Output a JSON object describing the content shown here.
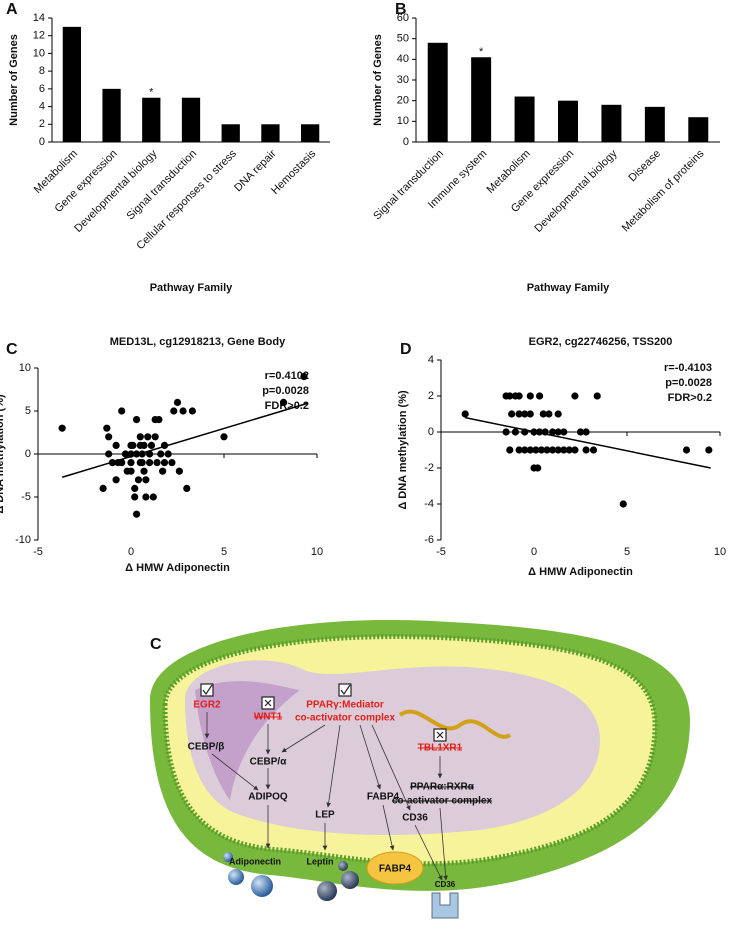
{
  "chart_data": [
    {
      "type": "bar",
      "panel": "A",
      "ylabel": "Number of Genes",
      "xlabel": "Pathway Family",
      "categories": [
        "Metabolism",
        "Gene expression",
        "Developmental biology",
        "Signal transduction",
        "Cellular responses to stress",
        "DNA repair",
        "Hemostasis"
      ],
      "values": [
        13,
        6,
        5,
        5,
        2,
        2,
        2
      ],
      "annotations": [
        null,
        null,
        "*",
        null,
        null,
        null,
        null
      ],
      "color": "#000000",
      "ylim": [
        0,
        14
      ],
      "yticks": [
        0,
        2,
        4,
        6,
        8,
        10,
        12,
        14
      ]
    },
    {
      "type": "bar",
      "panel": "B",
      "ylabel": "Number of Genes",
      "xlabel": "Pathway Family",
      "categories": [
        "Signal transduction",
        "Immune system",
        "Metabolism",
        "Gene expression",
        "Developmental biology",
        "Disease",
        "Metabolism of proteins"
      ],
      "values": [
        48,
        41,
        22,
        20,
        18,
        17,
        12
      ],
      "annotations": [
        null,
        "*",
        null,
        null,
        null,
        null,
        null
      ],
      "color": "#000000",
      "ylim": [
        0,
        60
      ],
      "yticks": [
        0,
        10,
        20,
        30,
        40,
        50,
        60
      ]
    },
    {
      "type": "scatter",
      "panel": "C",
      "title": "MED13L, cg12918213, Gene Body",
      "ylabel": "Δ DNA methylation (%)",
      "xlabel": "Δ HMW Adiponectin",
      "annotations": [
        "r=0.4102",
        "p=0.0028",
        "FDR>0.2"
      ],
      "color": "#000000",
      "x": [
        -3.7,
        -1.5,
        -1.3,
        -1.2,
        -1,
        -0.8,
        -0.7,
        -0.5,
        -0.3,
        0,
        0,
        0,
        0.1,
        0.2,
        0.2,
        0.3,
        0.3,
        0.3,
        0.4,
        0.5,
        0.5,
        0.6,
        0.7,
        0.7,
        0.8,
        0.8,
        0.9,
        1,
        1,
        1.1,
        1.2,
        1.3,
        1.3,
        1.5,
        1.6,
        1.7,
        1.8,
        2,
        2.2,
        2.3,
        2.5,
        2.6,
        2.8,
        3,
        3.3,
        5,
        8.2,
        9.3,
        -1.2,
        0.5,
        -0.5,
        -0.2,
        1.8,
        0,
        0.6,
        -0.8,
        1.4
      ],
      "y": [
        3,
        -4,
        3,
        2,
        -1,
        -3,
        -1,
        5,
        0,
        -2,
        0,
        -1,
        1,
        -4,
        -5,
        0,
        4,
        -7,
        -3,
        2,
        -1,
        0,
        1,
        -2,
        -3,
        -5,
        2,
        0,
        -1,
        1,
        -5,
        2,
        4,
        4,
        0,
        -2,
        1,
        0,
        -1,
        5,
        6,
        -2,
        5,
        -4,
        5,
        2,
        6,
        9,
        0,
        1,
        -1,
        -2,
        -1,
        1,
        -1,
        1,
        -1
      ],
      "fit": {
        "x": [
          -3.7,
          9.5
        ],
        "y": [
          -2.7,
          5.9
        ]
      },
      "xlim": [
        -5,
        10
      ],
      "xticks": [
        -5,
        0,
        5,
        10
      ],
      "ylim": [
        -10,
        10
      ],
      "yticks": [
        -10,
        -5,
        0,
        5,
        10
      ]
    },
    {
      "type": "scatter",
      "panel": "D",
      "title": "EGR2, cg22746256, TSS200",
      "ylabel": "Δ DNA methylation (%)",
      "xlabel": "Δ HMW Adiponectin",
      "annotations": [
        "r=-0.4103",
        "p=0.0028",
        "FDR>0.2"
      ],
      "color": "#000000",
      "x": [
        -3.7,
        -1.5,
        -1.3,
        -1,
        -0.8,
        -1.2,
        -0.8,
        -0.5,
        -0.2,
        0.5,
        0.8,
        1.3,
        2.2,
        3.4,
        -1.5,
        -1,
        -0.5,
        0,
        0.3,
        0.6,
        1,
        1.3,
        1.6,
        2.5,
        2.8,
        -1.3,
        -0.8,
        -0.5,
        -0.2,
        0.1,
        0.4,
        0.7,
        1,
        1.3,
        1.6,
        1.9,
        2.2,
        2.8,
        3.2,
        0,
        0.2,
        4.8,
        8.2,
        9.4,
        -0.2,
        0.3
      ],
      "y": [
        1,
        2,
        2,
        2,
        2,
        1,
        1,
        1,
        1,
        1,
        1,
        1,
        2,
        2,
        0,
        0,
        0,
        0,
        0,
        0,
        0,
        0,
        0,
        0,
        0,
        -1,
        -1,
        -1,
        -1,
        -1,
        -1,
        -1,
        -1,
        -1,
        -1,
        -1,
        -1,
        -1,
        -1,
        -2,
        -2,
        -4,
        -1,
        -1,
        2,
        2
      ],
      "fit": {
        "x": [
          -3.7,
          9.5
        ],
        "y": [
          0.8,
          -2
        ]
      },
      "xlim": [
        -5,
        10
      ],
      "xticks": [
        -5,
        0,
        5,
        10
      ],
      "ylim": [
        -6,
        4
      ],
      "yticks": [
        -6,
        -4,
        -2,
        0,
        2,
        4
      ]
    }
  ],
  "diagram": {
    "label": "C",
    "egr2": "EGR2",
    "wnt1": "WNT1",
    "ppar_g": "PPARγ:Mediator",
    "ppar_g2": "co-activator complex",
    "tbl1xr1": "TBL1XR1",
    "cebpb": "CEBP/β",
    "cebpa": "CEBP/α",
    "adipoq": "ADIPOQ",
    "lep": "LEP",
    "fabp4": "FABP4",
    "cd36": "CD36",
    "ppar_a": "PPARα:RXRα",
    "ppar_a2": "co-activator complex",
    "adiponectin": "Adiponectin",
    "leptin": "Leptin",
    "fabp4_protein": "FABP4",
    "cd36_protein": "CD36"
  }
}
